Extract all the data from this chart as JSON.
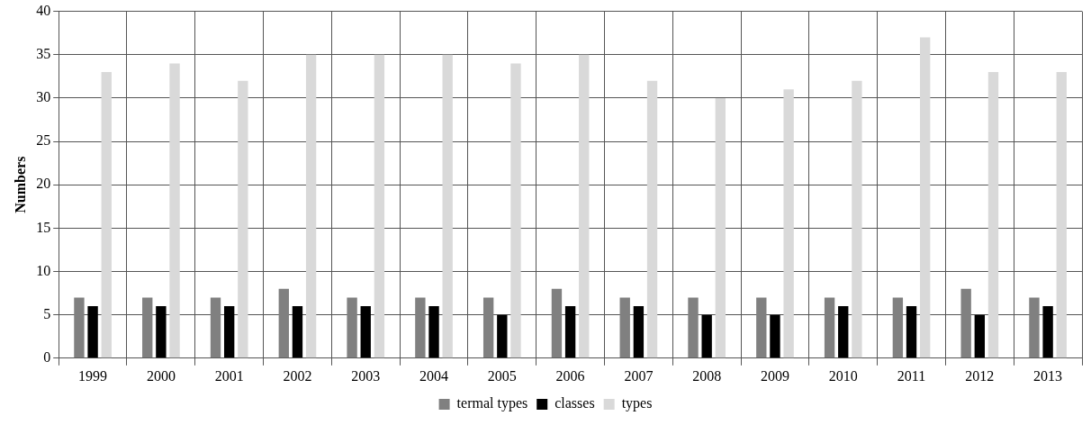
{
  "chart_data": {
    "type": "bar",
    "ylabel": "Numbers",
    "categories": [
      "1999",
      "2000",
      "2001",
      "2002",
      "2003",
      "2004",
      "2005",
      "2006",
      "2007",
      "2008",
      "2009",
      "2010",
      "2011",
      "2012",
      "2013"
    ],
    "series": [
      {
        "name": "termal types",
        "color": "#808080",
        "values": [
          7,
          7,
          7,
          8,
          7,
          7,
          7,
          8,
          7,
          7,
          7,
          7,
          7,
          8,
          7
        ]
      },
      {
        "name": "classes",
        "color": "#000000",
        "values": [
          6,
          6,
          6,
          6,
          6,
          6,
          5,
          6,
          6,
          5,
          5,
          6,
          6,
          5,
          6
        ]
      },
      {
        "name": "types",
        "color": "#d9d9d9",
        "values": [
          33,
          34,
          32,
          35,
          35,
          35,
          34,
          35,
          32,
          30,
          31,
          32,
          37,
          33,
          33
        ]
      }
    ],
    "ylim": [
      0,
      40
    ],
    "yticks": [
      0,
      5,
      10,
      15,
      20,
      25,
      30,
      35,
      40
    ],
    "grid": true,
    "legend": "bottom"
  }
}
